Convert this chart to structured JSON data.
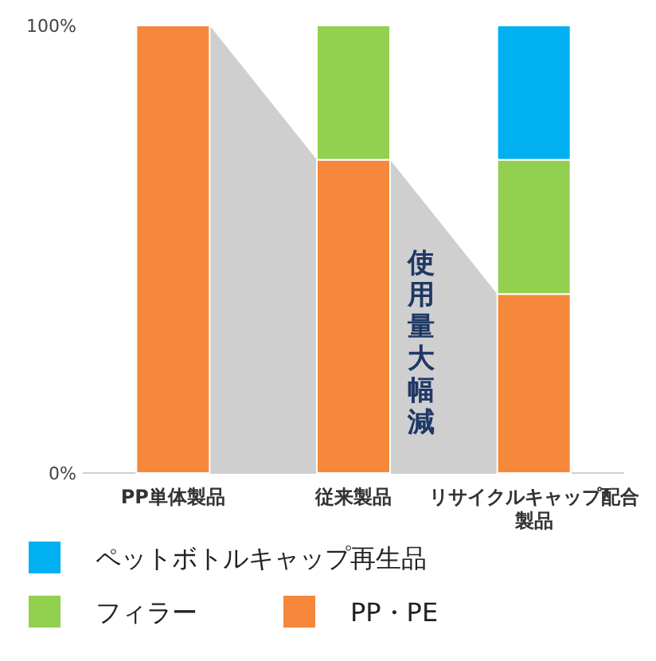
{
  "chart_data": {
    "type": "bar",
    "stacked": true,
    "categories": [
      "PP単体製品",
      "従来製品",
      "リサイクルキャップ配合製品"
    ],
    "series": [
      {
        "name": "PP・PE",
        "color": "#f5883a",
        "values": [
          100,
          70,
          40
        ]
      },
      {
        "name": "フィラー",
        "color": "#92d050",
        "values": [
          0,
          30,
          30
        ]
      },
      {
        "name": "ペットボトルキャップ再生品",
        "color": "#00b0f0",
        "values": [
          0,
          0,
          30
        ]
      }
    ],
    "ylim": [
      0,
      100
    ],
    "yticks": [
      {
        "value": 0,
        "label": "0%"
      },
      {
        "value": 100,
        "label": "100%"
      }
    ],
    "annotations": [
      "使用量大幅減"
    ],
    "legend": "bottom"
  }
}
